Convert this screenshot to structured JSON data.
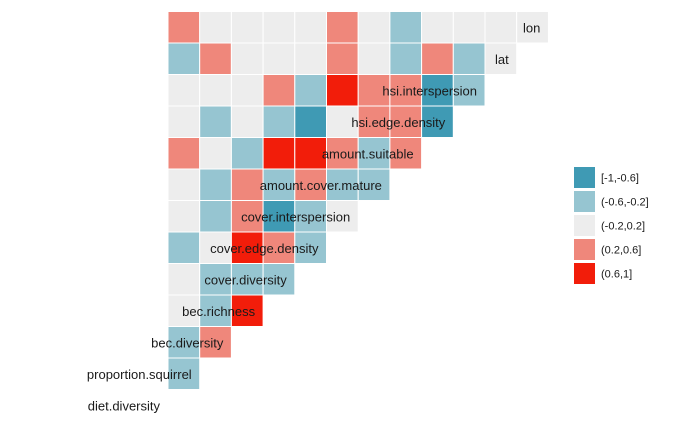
{
  "chart_data": {
    "type": "heatmap",
    "title": "",
    "variables": [
      "diet.diversity",
      "proportion.squirrel",
      "bec.diversity",
      "bec.richness",
      "cover.diversity",
      "cover.edge.density",
      "cover.interspersion",
      "amount.cover.mature",
      "amount.suitable",
      "hsi.edge.density",
      "hsi.interspersion",
      "lat",
      "lon"
    ],
    "legend": {
      "position": "right",
      "bins": [
        {
          "label": "[-1,-0.6]",
          "color": "#3F9AB4"
        },
        {
          "label": "(-0.6,-0.2]",
          "color": "#96C5D1"
        },
        {
          "label": "(-0.2,0.2]",
          "color": "#EDEDED"
        },
        {
          "label": "(0.2,0.6]",
          "color": "#EF877B"
        },
        {
          "label": "(0.6,1]",
          "color": "#F21D0A"
        }
      ]
    },
    "bin_matrix_note": "rows follow variables[1..]; row k lists bins for columns variables[0..k-1]",
    "bins_by_row": [
      [
        1
      ],
      [
        1,
        3
      ],
      [
        2,
        1,
        4
      ],
      [
        2,
        1,
        1,
        1
      ],
      [
        1,
        2,
        4,
        3,
        1
      ],
      [
        2,
        1,
        3,
        0,
        1,
        2
      ],
      [
        2,
        1,
        3,
        1,
        3,
        1,
        1
      ],
      [
        3,
        2,
        1,
        4,
        4,
        3,
        1,
        3
      ],
      [
        2,
        1,
        2,
        1,
        0,
        2,
        3,
        3,
        0
      ],
      [
        2,
        2,
        2,
        3,
        1,
        4,
        3,
        3,
        0,
        1
      ],
      [
        1,
        3,
        2,
        2,
        2,
        3,
        2,
        1,
        3,
        1,
        2
      ],
      [
        3,
        2,
        2,
        2,
        2,
        3,
        2,
        1,
        2,
        2,
        2,
        2
      ]
    ]
  }
}
